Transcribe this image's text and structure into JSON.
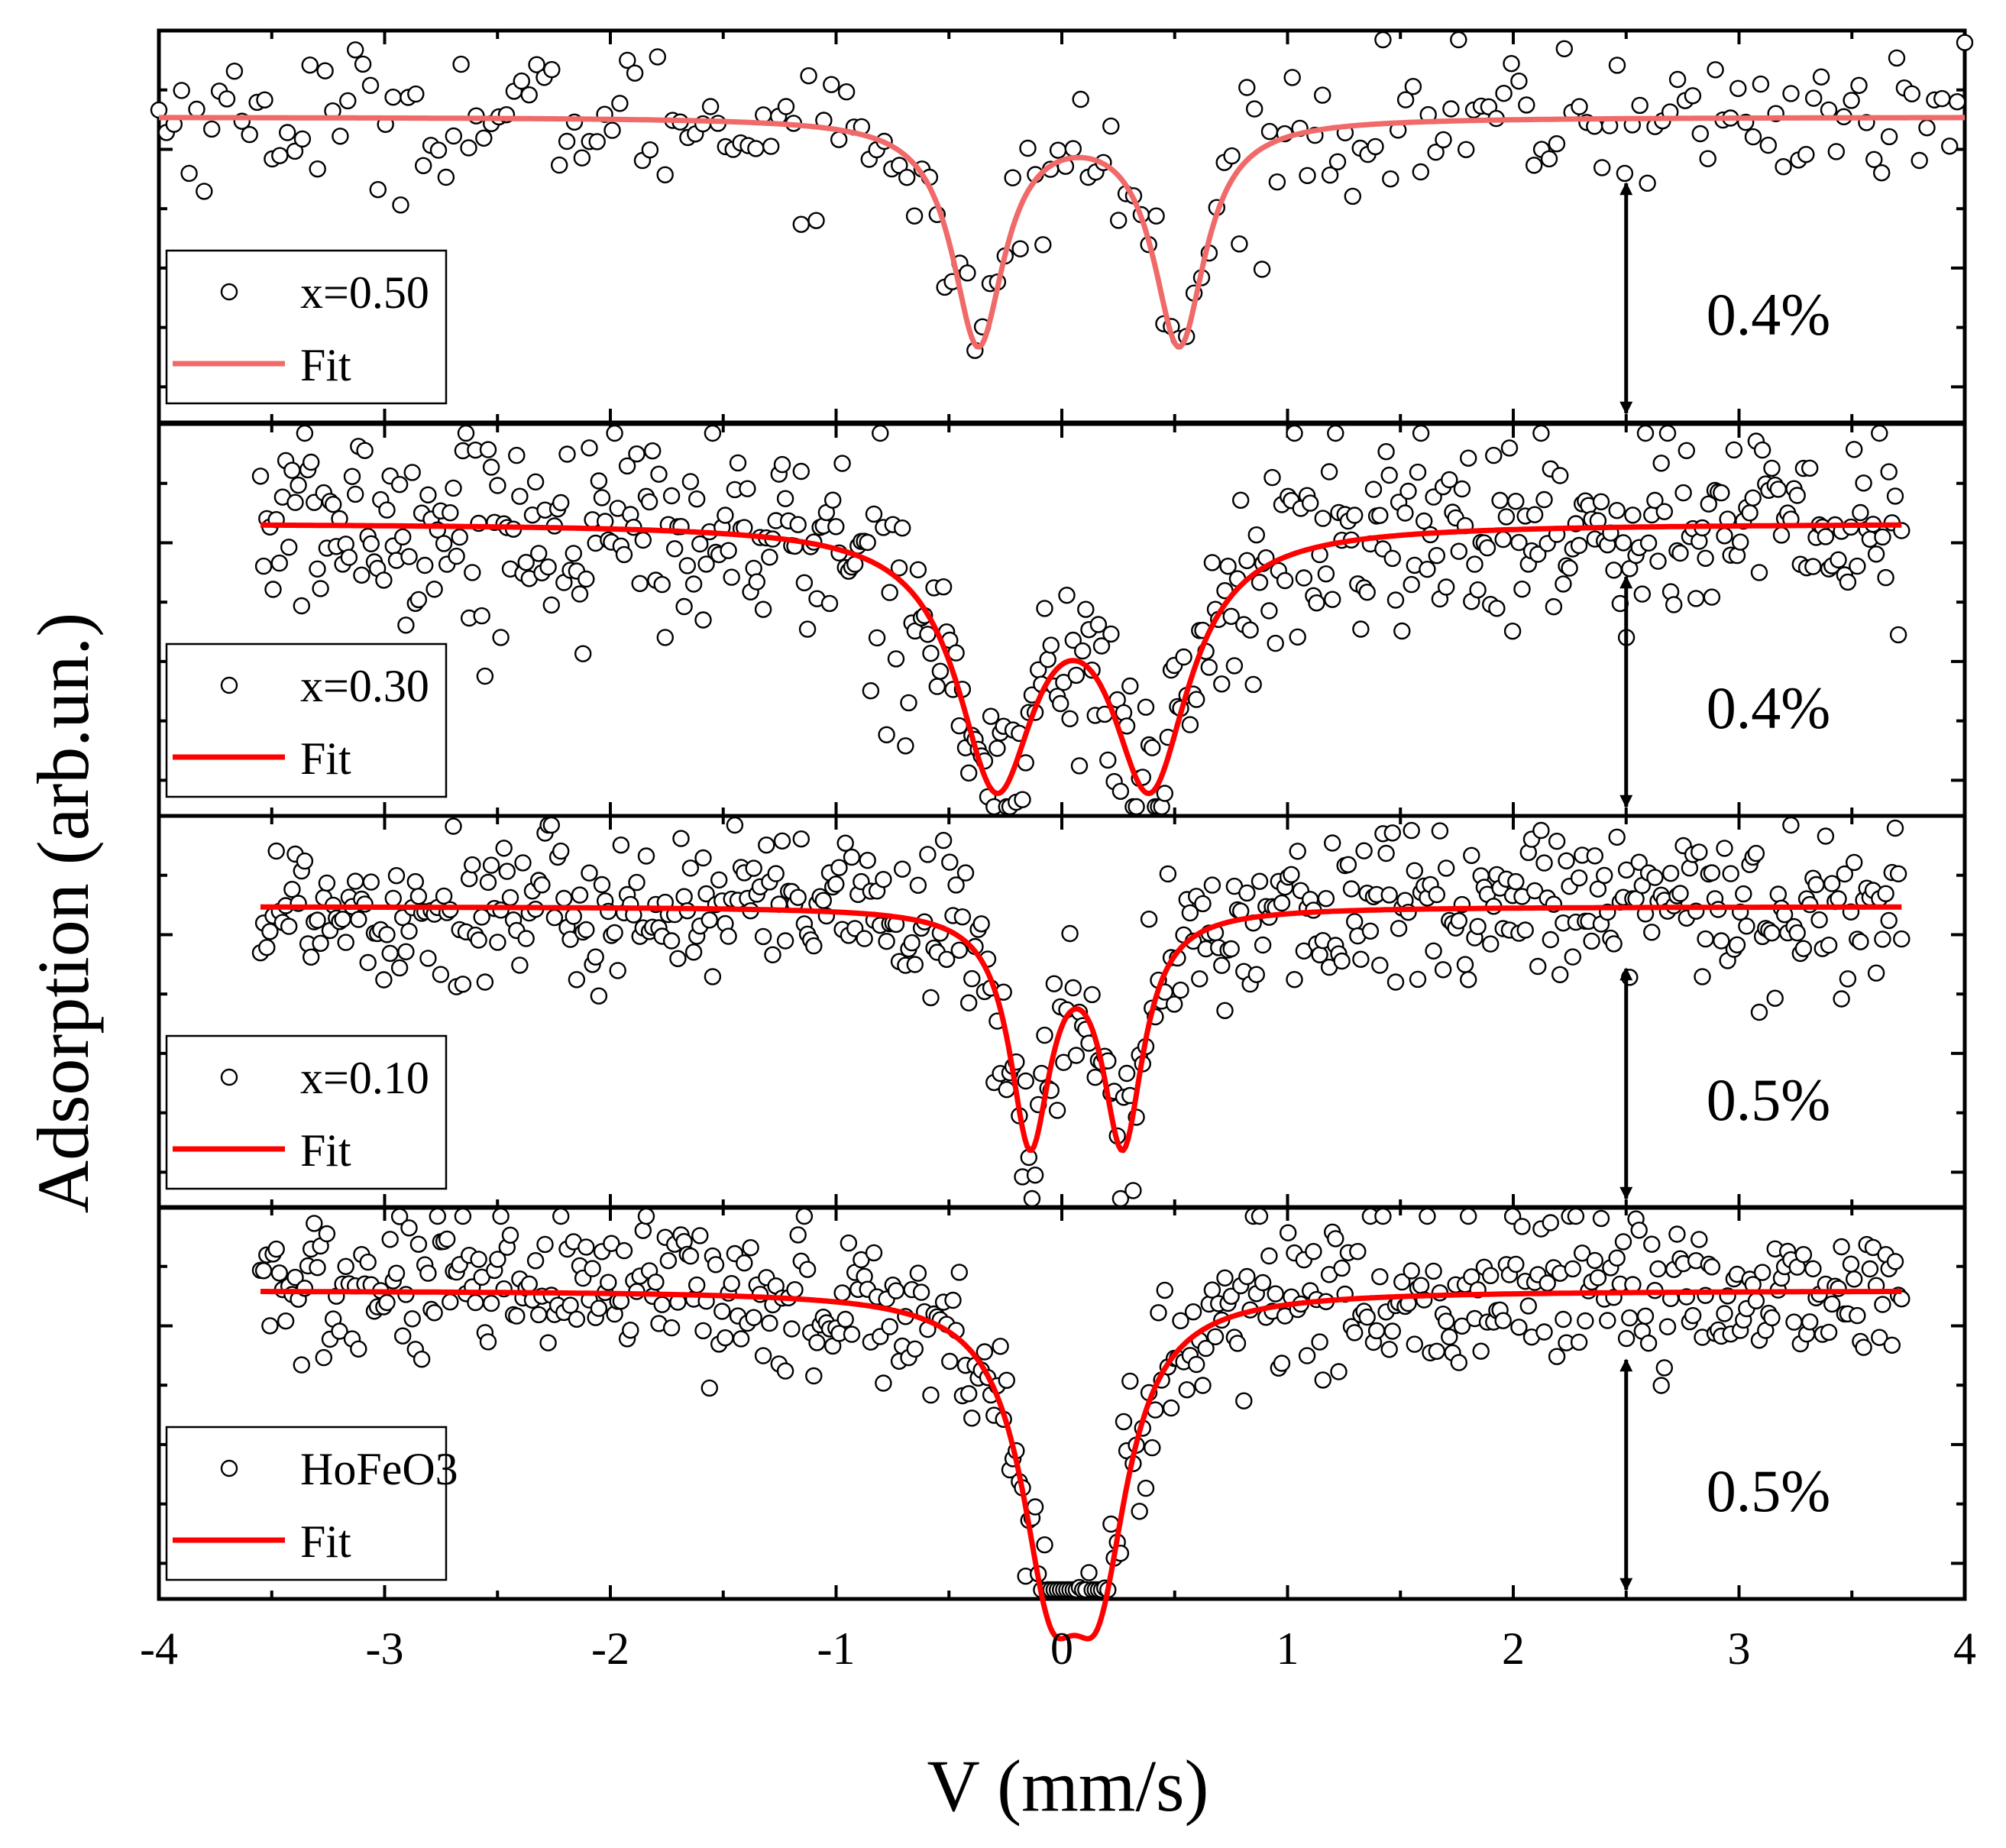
{
  "chart_data": {
    "type": "scatter",
    "title": "",
    "xlabel": "V (mm/s)",
    "ylabel": "Adsorption (arb.un.)",
    "xlim": [
      -4,
      4
    ],
    "x_ticks": [
      -4,
      -3,
      -2,
      -1,
      0,
      1,
      2,
      3,
      4
    ],
    "x_tick_labels": [
      "-4",
      "-3",
      "-2",
      "-1",
      "0",
      "1",
      "2",
      "3",
      "4"
    ],
    "grid": false,
    "stacked_panels": true,
    "panels": [
      {
        "data_label": "x=0.50",
        "fit_label": "Fit",
        "fit_color": "#f06a6a",
        "marker": "open-circle",
        "scale_bar_label": "0.4%",
        "scale_bar_x": 2.5,
        "x_range": [
          -4.0,
          4.0
        ],
        "baseline": 1.0,
        "lines": [
          {
            "center": -0.37,
            "hwhm": 0.14,
            "depth": 0.0039
          },
          {
            "center": 0.52,
            "hwhm": 0.14,
            "depth": 0.0039
          }
        ],
        "noise": 0.0006,
        "ylim": [
          0.9947,
          1.0015
        ]
      },
      {
        "data_label": "x=0.30",
        "fit_label": "Fit",
        "fit_color": "#ff0000",
        "marker": "open-circle",
        "scale_bar_label": "0.4%",
        "scale_bar_x": 2.5,
        "x_range": [
          -3.55,
          3.72
        ],
        "baseline": 1.0,
        "lines": [
          {
            "center": -0.29,
            "hwhm": 0.21,
            "depth": 0.0045
          },
          {
            "center": 0.39,
            "hwhm": 0.21,
            "depth": 0.0045
          }
        ],
        "noise": 0.0009,
        "ylim": [
          0.9947,
          1.0018
        ]
      },
      {
        "data_label": "x=0.10",
        "fit_label": "Fit",
        "fit_color": "#ff0000",
        "marker": "open-circle",
        "scale_bar_label": "0.5%",
        "scale_bar_x": 2.5,
        "x_range": [
          -3.55,
          3.72
        ],
        "baseline": 1.0,
        "lines": [
          {
            "center": -0.14,
            "hwhm": 0.11,
            "depth": 0.0063
          },
          {
            "center": 0.27,
            "hwhm": 0.11,
            "depth": 0.0063
          }
        ],
        "noise": 0.0011,
        "ylim": [
          0.9917,
          1.0025
        ]
      },
      {
        "data_label": "HoFeO3",
        "fit_label": "Fit",
        "fit_color": "#ff0000",
        "marker": "open-circle",
        "scale_bar_label": "0.5%",
        "scale_bar_x": 2.5,
        "x_range": [
          -3.55,
          3.72
        ],
        "baseline": 1.0,
        "lines": [
          {
            "center": -0.05,
            "hwhm": 0.16,
            "depth": 0.0068
          },
          {
            "center": 0.16,
            "hwhm": 0.16,
            "depth": 0.0068
          }
        ],
        "noise": 0.0011,
        "ylim": [
          0.9915,
          1.0023
        ]
      }
    ]
  }
}
